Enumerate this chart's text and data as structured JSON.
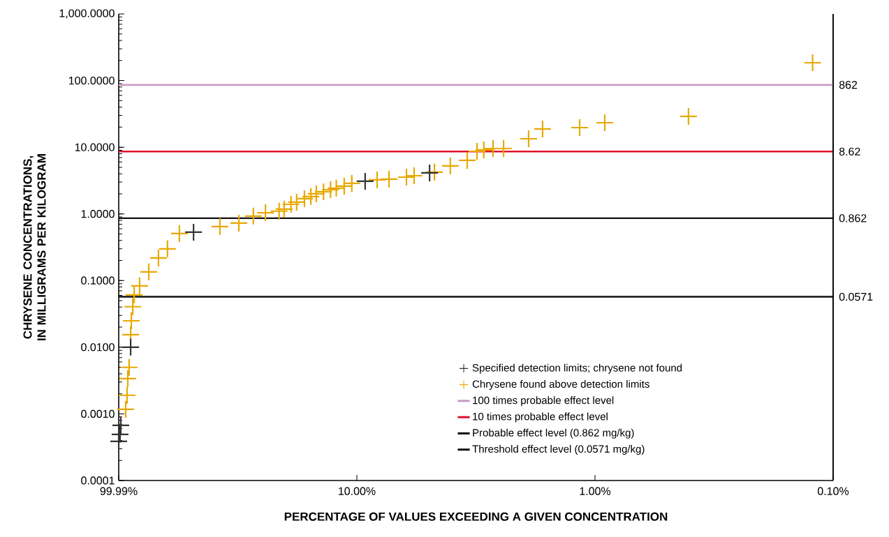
{
  "chart_data": {
    "type": "scatter",
    "xlabel": "PERCENTAGE OF VALUES EXCEEDING A GIVEN CONCENTRATION",
    "ylabel": "CHRYSENE CONCENTRATIONS,\nIN MILLIGRAMS PER KILOGRAM",
    "log": "xy",
    "legend": "bottom right",
    "grid": false,
    "xlim": [
      99.99,
      0.1
    ],
    "xticks": [
      {
        "value": 99.99,
        "label": "99.99%"
      },
      {
        "value": 10,
        "label": "10.00%"
      },
      {
        "value": 1,
        "label": "1.00%"
      },
      {
        "value": 0.1,
        "label": "0.10%"
      }
    ],
    "ylim": [
      0.0001,
      1000
    ],
    "yticks": [
      {
        "value": 0.0001,
        "label": "0.0001"
      },
      {
        "value": 0.001,
        "label": "0.0010"
      },
      {
        "value": 0.01,
        "label": "0.0100"
      },
      {
        "value": 0.1,
        "label": "0.1000"
      },
      {
        "value": 1,
        "label": "1.0000"
      },
      {
        "value": 10,
        "label": "10.0000"
      },
      {
        "value": 100,
        "label": "100.0000"
      },
      {
        "value": 1000,
        "label": "1,000.0000"
      }
    ],
    "annotations": [
      "862",
      "8.62",
      "0.862",
      "0.0571"
    ],
    "series": [
      {
        "name": "100 times probable effect level",
        "type": "line",
        "color": "#c898c4",
        "x": [
          99.99,
          0.1
        ],
        "values": [
          86.2,
          86.2
        ]
      },
      {
        "name": "10 times probable effect level",
        "type": "line",
        "color": "#e0102a",
        "x": [
          99.99,
          0.1
        ],
        "values": [
          8.62,
          8.62
        ]
      },
      {
        "name": "Probable effect level (0.862 mg/kg)",
        "type": "line",
        "color": "#111111",
        "x": [
          99.99,
          0.1
        ],
        "values": [
          0.862,
          0.862
        ]
      },
      {
        "name": "Threshold effect level (0.0571 mg/kg)",
        "type": "line",
        "color": "#111111",
        "x": [
          99.99,
          0.1
        ],
        "values": [
          0.0571,
          0.0571
        ]
      },
      {
        "name": "Chrysene found above detection limits",
        "marker": "cross",
        "color": "#e8a800",
        "x": [
          93.5,
          92.2,
          91.6,
          90.4,
          89.1,
          88.5,
          87.3,
          86.1,
          81.7,
          74.8,
          68.1,
          62.4,
          55.6,
          37.6,
          31.3,
          27.2,
          24.2,
          21.2,
          20.2,
          18.9,
          17.9,
          16.6,
          15.6,
          14.8,
          13.8,
          12.9,
          12.2,
          11.3,
          10.5,
          8.22,
          7.33,
          6.19,
          5.75,
          4.72,
          4.05,
          3.44,
          3.13,
          2.93,
          2.68,
          2.42,
          1.9,
          1.66,
          1.16,
          0.91,
          0.405,
          0.122
        ],
        "values": [
          0.00117,
          0.0019,
          0.00338,
          0.00498,
          0.0154,
          0.0249,
          0.0405,
          0.061,
          0.0834,
          0.135,
          0.218,
          0.299,
          0.507,
          0.646,
          0.728,
          0.927,
          1.04,
          1.1,
          1.18,
          1.39,
          1.5,
          1.69,
          1.82,
          2.0,
          2.15,
          2.31,
          2.43,
          2.61,
          2.87,
          3.24,
          3.32,
          3.56,
          3.74,
          4.23,
          5.25,
          6.36,
          8.69,
          9.12,
          9.57,
          9.57,
          13.4,
          18.8,
          19.7,
          23.3,
          29.0,
          185
        ]
      },
      {
        "name": "Specified detection limits; chrysene not found",
        "marker": "cross",
        "color": "#333333",
        "x": [
          99.99,
          98.7,
          98.0,
          89.1,
          48.5,
          9.23,
          4.95
        ],
        "values": [
          0.000387,
          0.000492,
          0.000673,
          0.01,
          0.532,
          3.09,
          4.12
        ]
      }
    ]
  }
}
